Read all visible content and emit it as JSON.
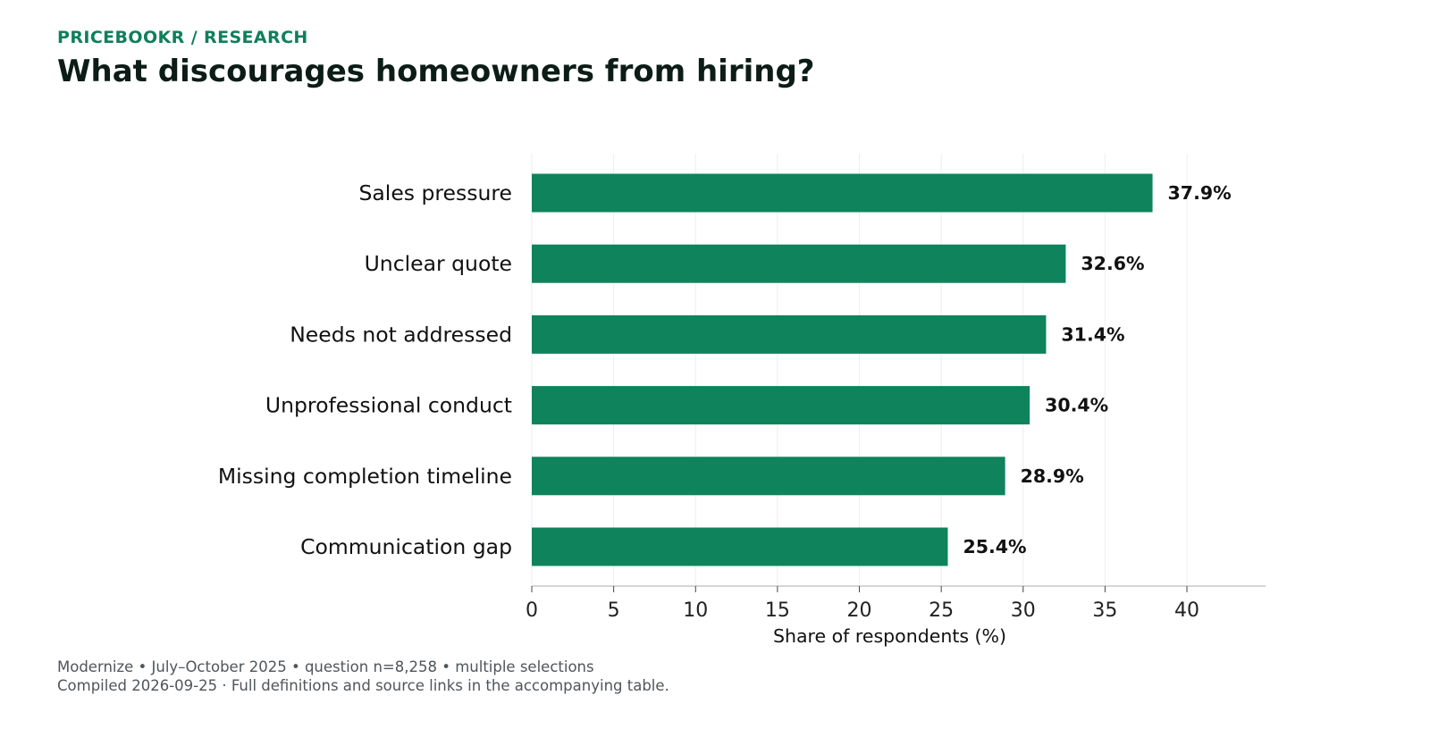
{
  "header": {
    "kicker": "PRICEBOOKR / RESEARCH",
    "title": "What discourages homeowners from hiring?"
  },
  "footer": {
    "line1": "Modernize • July–October 2025 • question n=8,258 • multiple selections",
    "line2": "Compiled 2026-09-25 · Full definitions and source links in the accompanying table."
  },
  "colors": {
    "bar": "#0f835c",
    "text": "#111111",
    "grid": "#eeeeee",
    "axis": "#c8c8c8"
  },
  "chart_data": {
    "type": "bar",
    "orientation": "horizontal",
    "title": "What discourages homeowners from hiring?",
    "xlabel": "Share of respondents (%)",
    "ylabel": "",
    "xlim": [
      0,
      44.8
    ],
    "xticks": [
      0,
      5,
      10,
      15,
      20,
      25,
      30,
      35,
      40
    ],
    "grid": "vertical",
    "categories": [
      "Sales pressure",
      "Unclear quote",
      "Needs not addressed",
      "Unprofessional conduct",
      "Missing completion timeline",
      "Communication gap"
    ],
    "values": [
      37.9,
      32.6,
      31.4,
      30.4,
      28.9,
      25.4
    ],
    "value_labels": [
      "37.9%",
      "32.6%",
      "31.4%",
      "30.4%",
      "28.9%",
      "25.4%"
    ]
  }
}
